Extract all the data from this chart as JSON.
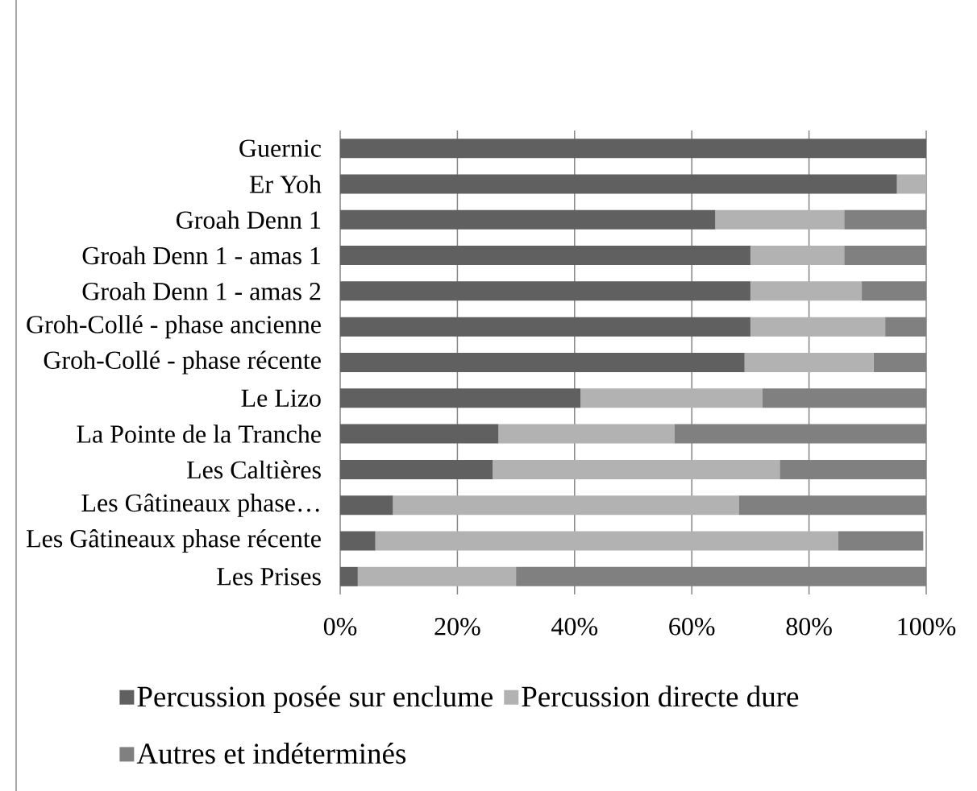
{
  "chart_data": {
    "type": "bar",
    "orientation": "horizontal",
    "stacked": true,
    "categories": [
      "Guernic",
      "Er Yoh",
      "Groah Denn 1",
      "Groah Denn 1 - amas 1",
      "Groah Denn 1 - amas 2",
      "Groh-Collé - phase ancienne",
      "Groh-Collé - phase récente",
      "Le Lizo",
      "La Pointe de la Tranche",
      "Les Caltières",
      "Les Gâtineaux phase…",
      "Les Gâtineaux phase récente",
      "Les Prises"
    ],
    "series": [
      {
        "name": "Percussion posée sur enclume",
        "color": "#606060",
        "values": [
          100,
          95,
          64,
          70,
          70,
          70,
          69,
          41,
          27,
          26,
          9,
          6,
          3
        ]
      },
      {
        "name": "Percussion directe dure",
        "color": "#b2b2b2",
        "values": [
          0,
          5,
          22,
          16,
          19,
          23,
          22,
          31,
          30,
          49,
          59,
          79,
          27
        ]
      },
      {
        "name": "Autres et indéterminés",
        "color": "#808080",
        "values": [
          0,
          0,
          14,
          14,
          11,
          7,
          9,
          28,
          43,
          25,
          32,
          14.5,
          70
        ]
      }
    ],
    "xlim": [
      0,
      100
    ],
    "xticks": [
      {
        "value": 0,
        "label": "0%"
      },
      {
        "value": 20,
        "label": "20%"
      },
      {
        "value": 40,
        "label": "40%"
      },
      {
        "value": 60,
        "label": "60%"
      },
      {
        "value": 80,
        "label": "80%"
      },
      {
        "value": 100,
        "label": "100%"
      }
    ],
    "grid": "x",
    "legend": "bottom"
  }
}
